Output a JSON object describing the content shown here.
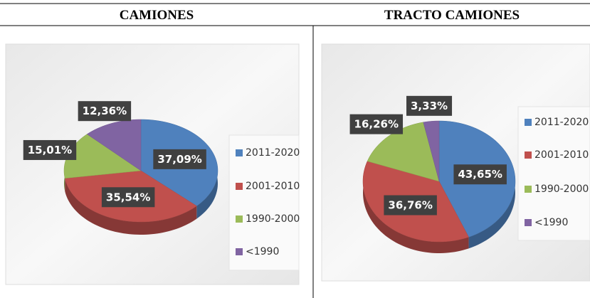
{
  "chart_data": [
    {
      "type": "pie",
      "title": "CAMIONES",
      "categories": [
        "2011-2020",
        "2001-2010",
        "1990-2000",
        "<1990"
      ],
      "values": [
        37.09,
        35.54,
        15.01,
        12.36
      ],
      "value_labels": [
        "37,09%",
        "35,54%",
        "15,01%",
        "12,36%"
      ],
      "colors": [
        "#4f81bd",
        "#c0504d",
        "#9bbb59",
        "#8064a2"
      ],
      "legend": "right"
    },
    {
      "type": "pie",
      "title": "TRACTO CAMIONES",
      "categories": [
        "2011-2020",
        "2001-2010",
        "1990-2000",
        "<1990"
      ],
      "values": [
        43.65,
        36.76,
        16.26,
        3.33
      ],
      "value_labels": [
        "43,65%",
        "36,76%",
        "16,26%",
        "3,33%"
      ],
      "colors": [
        "#4f81bd",
        "#c0504d",
        "#9bbb59",
        "#8064a2"
      ],
      "legend": "right"
    }
  ]
}
